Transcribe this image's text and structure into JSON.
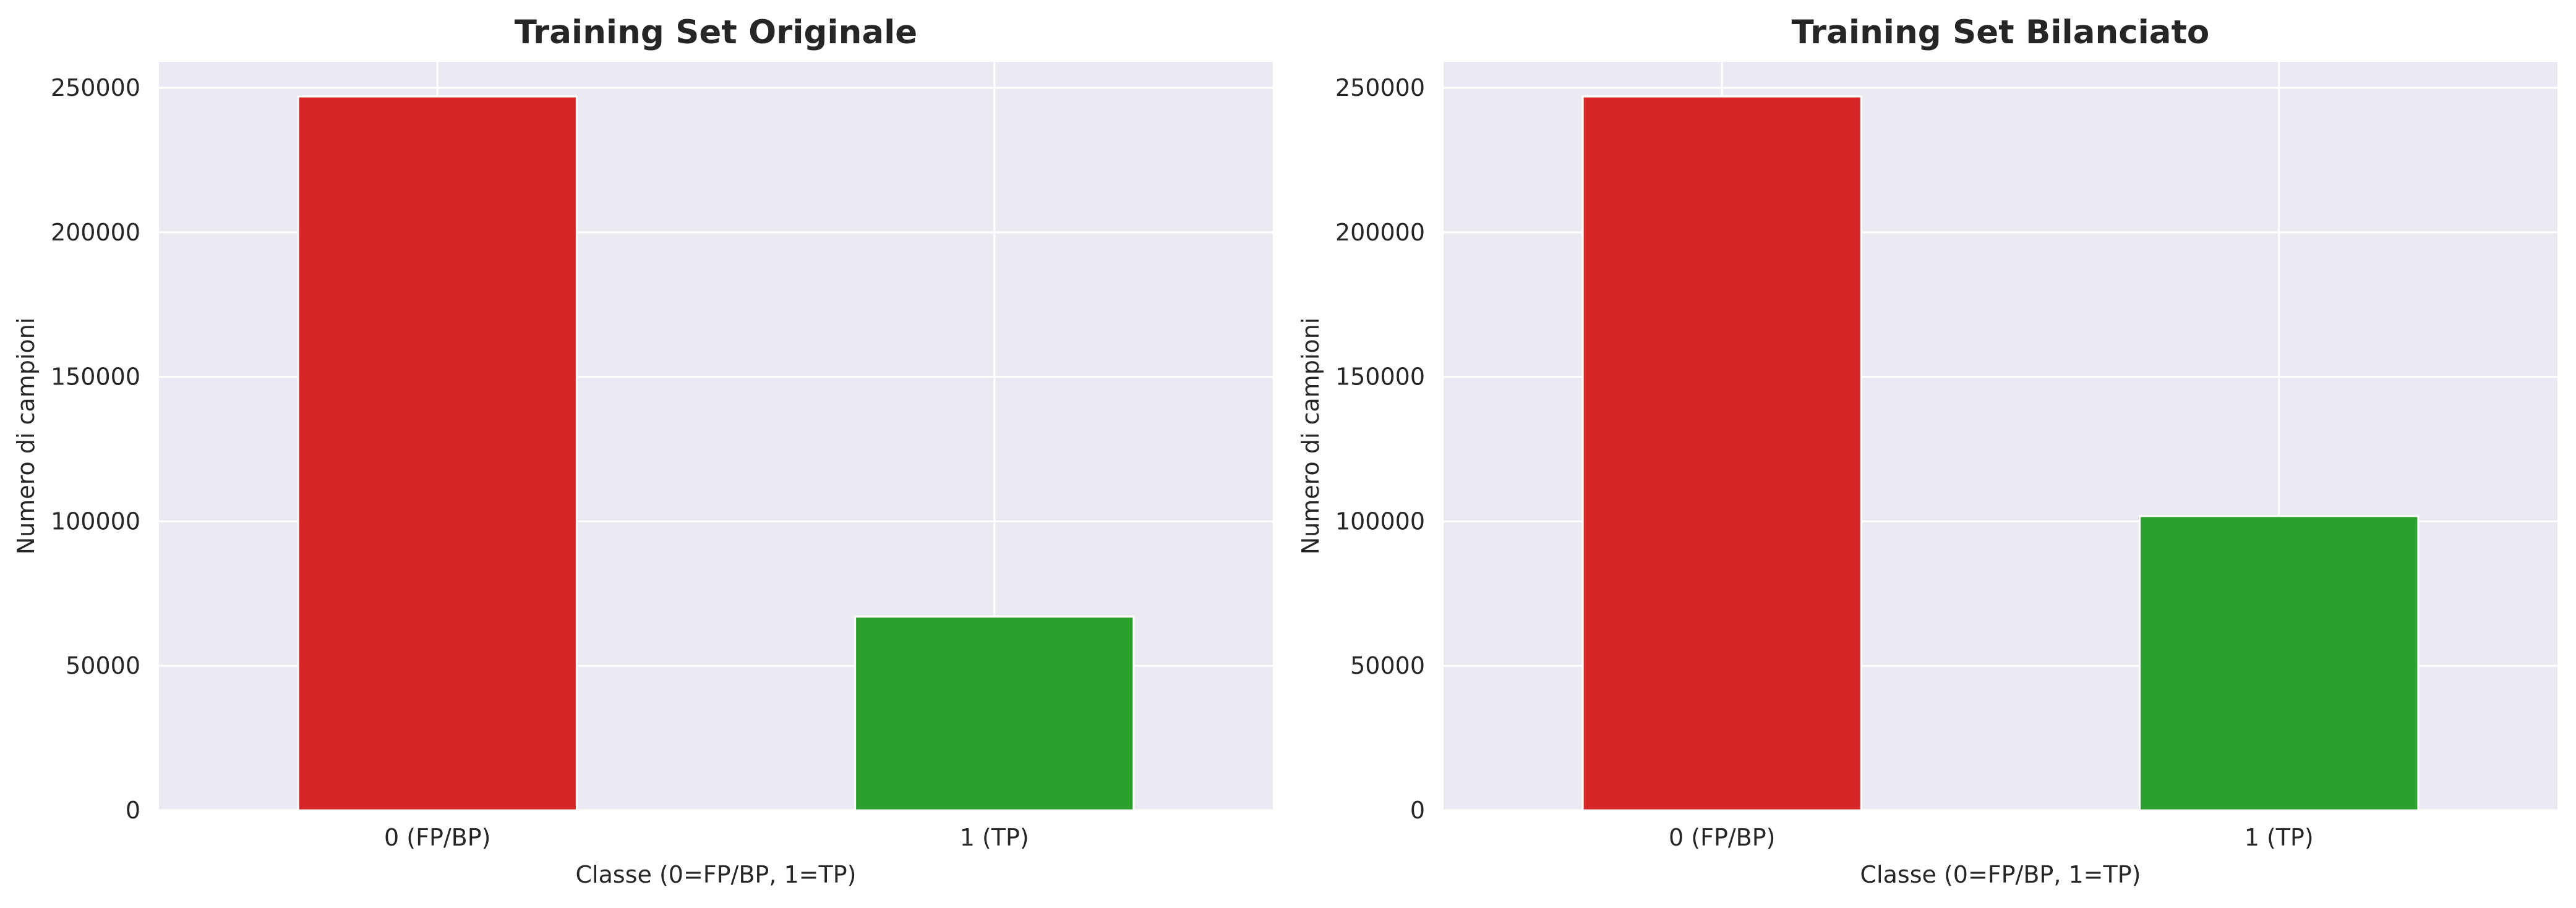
{
  "chart_data": [
    {
      "type": "bar",
      "title": "Training Set Originale",
      "xlabel": "Classe (0=FP/BP, 1=TP)",
      "ylabel": "Numero di campioni",
      "categories": [
        "0 (FP/BP)",
        "1 (TP)"
      ],
      "values": [
        247000,
        67000
      ],
      "colors": [
        "#d62728",
        "#2ca02c"
      ],
      "yticks": [
        0,
        50000,
        100000,
        150000,
        200000,
        250000
      ],
      "ytick_labels": [
        "0",
        "50000",
        "100000",
        "150000",
        "200000",
        "250000"
      ],
      "ylim": [
        0,
        259000
      ],
      "grid": true,
      "background": "#eaeaf2"
    },
    {
      "type": "bar",
      "title": "Training Set Bilanciato",
      "xlabel": "Classe (0=FP/BP, 1=TP)",
      "ylabel": "Numero di campioni",
      "categories": [
        "0 (FP/BP)",
        "1 (TP)"
      ],
      "values": [
        247000,
        101800
      ],
      "colors": [
        "#d62728",
        "#2ca02c"
      ],
      "yticks": [
        0,
        50000,
        100000,
        150000,
        200000,
        250000
      ],
      "ytick_labels": [
        "0",
        "50000",
        "100000",
        "150000",
        "200000",
        "250000"
      ],
      "ylim": [
        0,
        259000
      ],
      "grid": true,
      "background": "#eaeaf2"
    }
  ]
}
